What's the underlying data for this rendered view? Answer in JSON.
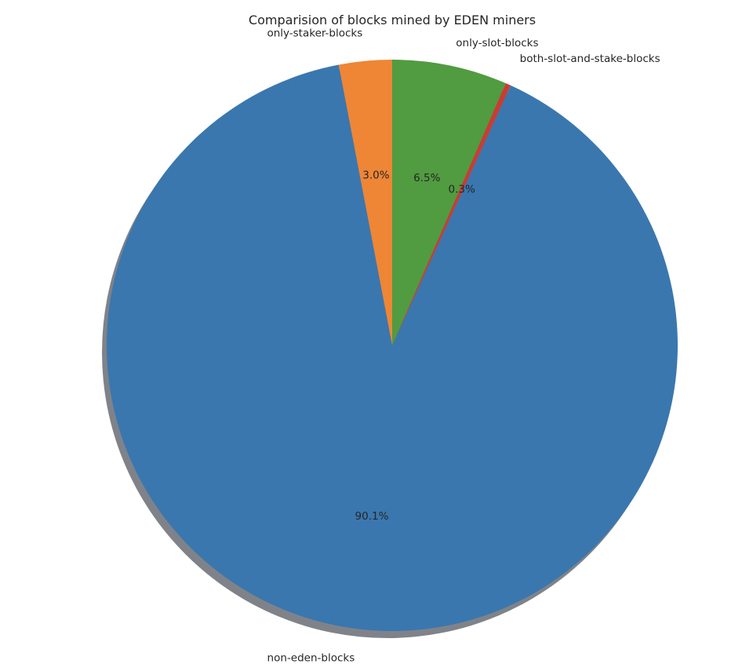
{
  "chart_data": {
    "type": "pie",
    "title": "Comparision of blocks mined by EDEN miners",
    "start_angle": 90,
    "direction": "counterclockwise",
    "shadow": true,
    "slices": [
      {
        "label": "only-staker-blocks",
        "value": 3.0,
        "pct_label": "3.0%",
        "color": "#ee8636"
      },
      {
        "label": "non-eden-blocks",
        "value": 90.1,
        "pct_label": "90.1%",
        "color": "#3a77ae"
      },
      {
        "label": "both-slot-and-stake-blocks",
        "value": 0.3,
        "pct_label": "0.3%",
        "color": "#c73d33"
      },
      {
        "label": "only-slot-blocks",
        "value": 6.5,
        "pct_label": "6.5%",
        "color": "#519b40"
      }
    ]
  }
}
